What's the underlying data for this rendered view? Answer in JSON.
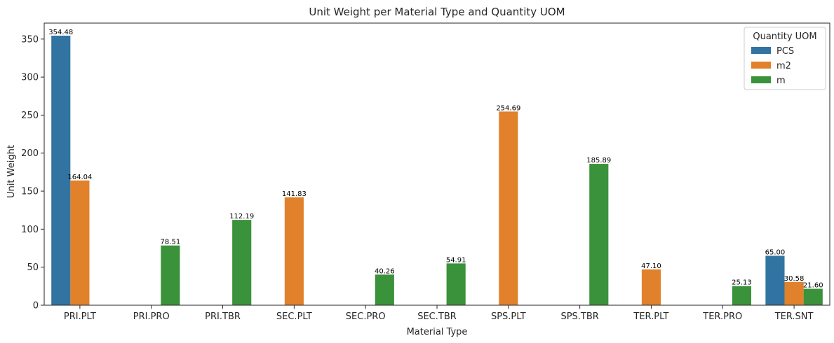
{
  "chart_data": {
    "type": "bar",
    "title": "Unit Weight per Material Type and Quantity UOM",
    "xlabel": "Material Type",
    "ylabel": "Unit Weight",
    "ylim": [
      0,
      371
    ],
    "yticks": [
      "0",
      "50",
      "100",
      "150",
      "200",
      "250",
      "300",
      "350"
    ],
    "grid": false,
    "legend": {
      "title": "Quantity UOM",
      "placement": "top-right"
    },
    "categories": [
      "PRI.PLT",
      "PRI.PRO",
      "PRI.TBR",
      "SEC.PLT",
      "SEC.PRO",
      "SEC.TBR",
      "SPS.PLT",
      "SPS.TBR",
      "TER.PLT",
      "TER.PRO",
      "TER.SNT"
    ],
    "series": [
      {
        "name": "PCS",
        "color": "#3274a1",
        "values": [
          354.48,
          null,
          null,
          null,
          null,
          null,
          null,
          null,
          null,
          null,
          65.0
        ],
        "labels": [
          "354.48",
          "",
          "",
          "",
          "",
          "",
          "",
          "",
          "",
          "",
          "65.00"
        ]
      },
      {
        "name": "m2",
        "color": "#e1812c",
        "values": [
          164.04,
          null,
          null,
          141.83,
          null,
          null,
          254.69,
          null,
          47.1,
          null,
          30.58
        ],
        "labels": [
          "164.04",
          "",
          "",
          "141.83",
          "",
          "",
          "254.69",
          "",
          "47.10",
          "",
          "30.58"
        ]
      },
      {
        "name": "m",
        "color": "#3a923a",
        "values": [
          null,
          78.51,
          112.19,
          null,
          40.26,
          54.91,
          null,
          185.89,
          null,
          25.13,
          21.6
        ],
        "labels": [
          "",
          "78.51",
          "112.19",
          "",
          "40.26",
          "54.91",
          "",
          "185.89",
          "",
          "25.13",
          "21.60"
        ]
      }
    ]
  }
}
